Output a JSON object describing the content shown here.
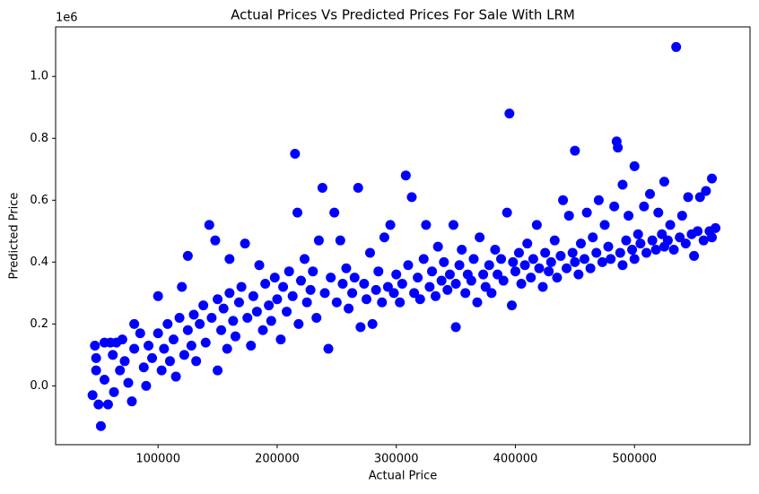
{
  "chart_data": {
    "type": "scatter",
    "title": "Actual Prices Vs Predicted Prices For Sale With LRM",
    "x_label": "Actual Price",
    "y_label": "Predicted Price",
    "y_offset_label": "1e6",
    "color": "#0000ff",
    "xlim": [
      14000,
      597000
    ],
    "ylim": [
      -190000,
      1160000
    ],
    "xticks": [
      100000,
      200000,
      300000,
      400000,
      500000
    ],
    "yticks": [
      {
        "value": 0,
        "label": "0.0"
      },
      {
        "value": 200000,
        "label": "0.2"
      },
      {
        "value": 400000,
        "label": "0.4"
      },
      {
        "value": 600000,
        "label": "0.6"
      },
      {
        "value": 800000,
        "label": "0.8"
      },
      {
        "value": 1000000,
        "label": "1.0"
      }
    ],
    "x": [
      45000,
      47000,
      48000,
      48000,
      50000,
      52000,
      55000,
      55000,
      58000,
      60000,
      62000,
      63000,
      65000,
      68000,
      70000,
      72000,
      75000,
      78000,
      80000,
      80000,
      85000,
      88000,
      90000,
      92000,
      95000,
      100000,
      100000,
      103000,
      105000,
      108000,
      110000,
      113000,
      115000,
      118000,
      120000,
      122000,
      125000,
      125000,
      128000,
      130000,
      132000,
      135000,
      138000,
      140000,
      143000,
      145000,
      148000,
      150000,
      150000,
      153000,
      155000,
      158000,
      160000,
      160000,
      163000,
      165000,
      168000,
      170000,
      173000,
      175000,
      178000,
      180000,
      183000,
      185000,
      188000,
      190000,
      193000,
      195000,
      198000,
      200000,
      203000,
      205000,
      208000,
      210000,
      213000,
      215000,
      217000,
      218000,
      220000,
      223000,
      225000,
      228000,
      230000,
      233000,
      235000,
      238000,
      240000,
      243000,
      245000,
      248000,
      250000,
      253000,
      255000,
      258000,
      260000,
      263000,
      265000,
      268000,
      270000,
      273000,
      275000,
      278000,
      280000,
      283000,
      285000,
      288000,
      290000,
      293000,
      295000,
      298000,
      300000,
      303000,
      305000,
      308000,
      310000,
      313000,
      315000,
      318000,
      320000,
      323000,
      325000,
      328000,
      330000,
      333000,
      335000,
      338000,
      340000,
      343000,
      345000,
      348000,
      350000,
      350000,
      353000,
      355000,
      358000,
      360000,
      363000,
      365000,
      368000,
      370000,
      373000,
      375000,
      378000,
      380000,
      383000,
      385000,
      388000,
      390000,
      393000,
      395000,
      397000,
      398000,
      400000,
      403000,
      405000,
      408000,
      410000,
      413000,
      415000,
      418000,
      420000,
      423000,
      425000,
      428000,
      430000,
      433000,
      435000,
      438000,
      440000,
      443000,
      445000,
      448000,
      450000,
      450000,
      453000,
      455000,
      458000,
      460000,
      463000,
      465000,
      468000,
      470000,
      473000,
      475000,
      478000,
      480000,
      483000,
      485000,
      486000,
      488000,
      490000,
      490000,
      493000,
      495000,
      498000,
      500000,
      500000,
      503000,
      505000,
      508000,
      510000,
      513000,
      515000,
      518000,
      520000,
      523000,
      525000,
      525000,
      528000,
      530000,
      533000,
      535000,
      538000,
      540000,
      543000,
      545000,
      548000,
      550000,
      553000,
      555000,
      558000,
      560000,
      563000,
      565000,
      565000,
      568000
    ],
    "values": [
      -30000,
      130000,
      50000,
      90000,
      -60000,
      -130000,
      140000,
      20000,
      -60000,
      140000,
      100000,
      -20000,
      140000,
      50000,
      150000,
      80000,
      10000,
      -50000,
      200000,
      120000,
      170000,
      60000,
      0,
      130000,
      90000,
      290000,
      170000,
      50000,
      120000,
      200000,
      80000,
      150000,
      30000,
      220000,
      320000,
      100000,
      420000,
      180000,
      130000,
      230000,
      80000,
      200000,
      260000,
      140000,
      520000,
      220000,
      470000,
      50000,
      280000,
      180000,
      250000,
      120000,
      410000,
      300000,
      210000,
      160000,
      270000,
      320000,
      460000,
      220000,
      130000,
      290000,
      240000,
      390000,
      180000,
      330000,
      260000,
      210000,
      350000,
      280000,
      150000,
      320000,
      240000,
      370000,
      290000,
      750000,
      560000,
      200000,
      340000,
      410000,
      270000,
      310000,
      370000,
      220000,
      470000,
      640000,
      300000,
      120000,
      350000,
      560000,
      270000,
      470000,
      330000,
      380000,
      250000,
      300000,
      350000,
      640000,
      190000,
      330000,
      280000,
      430000,
      200000,
      310000,
      370000,
      270000,
      480000,
      320000,
      520000,
      300000,
      360000,
      270000,
      330000,
      680000,
      390000,
      610000,
      300000,
      350000,
      280000,
      410000,
      520000,
      320000,
      370000,
      290000,
      450000,
      340000,
      400000,
      310000,
      360000,
      520000,
      190000,
      330000,
      390000,
      440000,
      300000,
      360000,
      340000,
      410000,
      270000,
      480000,
      360000,
      320000,
      390000,
      300000,
      440000,
      360000,
      410000,
      340000,
      560000,
      880000,
      260000,
      400000,
      370000,
      430000,
      330000,
      390000,
      460000,
      350000,
      410000,
      520000,
      380000,
      320000,
      430000,
      370000,
      400000,
      470000,
      350000,
      420000,
      600000,
      380000,
      550000,
      430000,
      760000,
      400000,
      360000,
      460000,
      410000,
      560000,
      380000,
      480000,
      430000,
      600000,
      400000,
      520000,
      450000,
      410000,
      580000,
      790000,
      770000,
      430000,
      650000,
      390000,
      470000,
      550000,
      440000,
      710000,
      410000,
      490000,
      460000,
      580000,
      430000,
      620000,
      470000,
      440000,
      560000,
      490000,
      660000,
      450000,
      470000,
      520000,
      440000,
      1095000,
      480000,
      550000,
      460000,
      610000,
      490000,
      420000,
      500000,
      610000,
      470000,
      630000,
      500000,
      670000,
      480000,
      510000
    ]
  }
}
